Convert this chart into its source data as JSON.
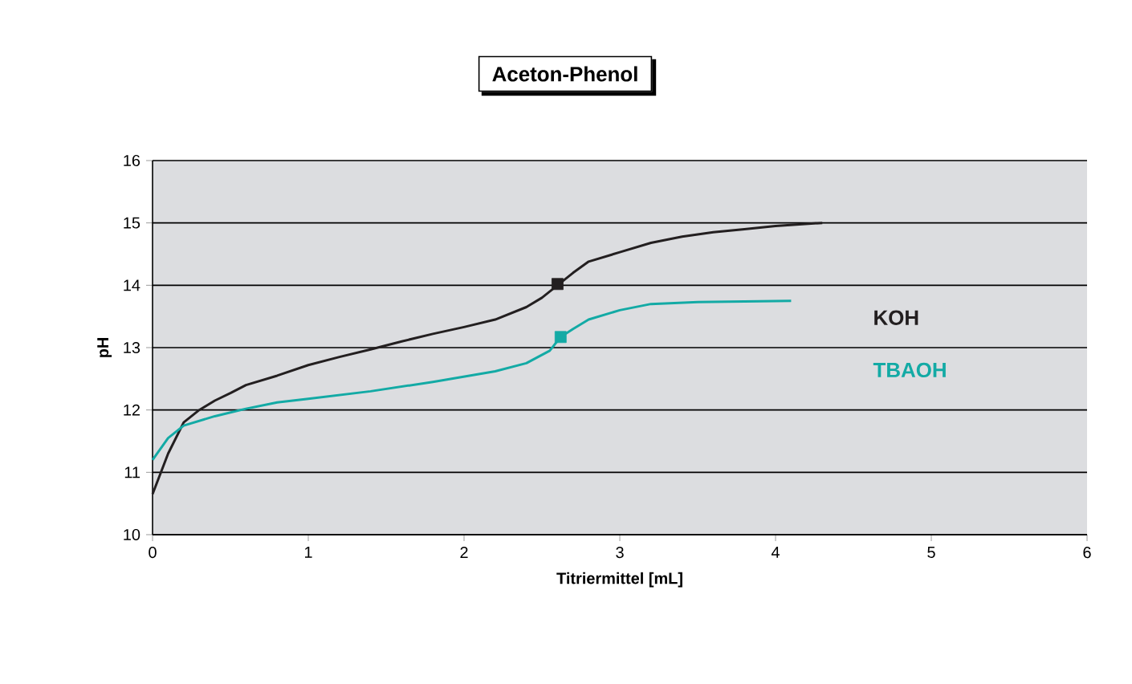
{
  "chart_data": {
    "type": "line",
    "title": "Aceton-Phenol",
    "xlabel": "Titriermittel [mL]",
    "ylabel": "pH",
    "xlim": [
      0,
      6
    ],
    "xticks": [
      0,
      1,
      2,
      3,
      4,
      5,
      6
    ],
    "ylim": [
      10,
      16
    ],
    "yticks": [
      10,
      11,
      12,
      13,
      14,
      15,
      16
    ],
    "grid": "y",
    "legend": "right",
    "marker": "none",
    "line_style": "solid",
    "series": [
      {
        "name": "KOH",
        "color": "#231f20",
        "x": [
          0,
          0.1,
          0.2,
          0.3,
          0.4,
          0.5,
          0.6,
          0.8,
          1.0,
          1.2,
          1.4,
          1.6,
          1.8,
          2.0,
          2.2,
          2.4,
          2.5,
          2.6,
          2.7,
          2.8,
          3.0,
          3.2,
          3.4,
          3.6,
          3.8,
          4.0,
          4.3
        ],
        "values": [
          10.65,
          11.3,
          11.8,
          12.0,
          12.15,
          12.27,
          12.4,
          12.55,
          12.72,
          12.85,
          12.97,
          13.1,
          13.22,
          13.33,
          13.45,
          13.65,
          13.8,
          14.0,
          14.2,
          14.38,
          14.53,
          14.68,
          14.78,
          14.85,
          14.9,
          14.95,
          15.0
        ]
      },
      {
        "name": "TBAOH",
        "color": "#13aaa5",
        "x": [
          0,
          0.1,
          0.2,
          0.4,
          0.6,
          0.8,
          1.0,
          1.4,
          1.8,
          2.2,
          2.4,
          2.55,
          2.62,
          2.7,
          2.8,
          3.0,
          3.2,
          3.5,
          4.1
        ],
        "values": [
          11.2,
          11.55,
          11.75,
          11.9,
          12.02,
          12.12,
          12.18,
          12.3,
          12.45,
          12.62,
          12.75,
          12.95,
          13.17,
          13.3,
          13.45,
          13.6,
          13.7,
          13.73,
          13.75
        ]
      },
      {
        "type": "scatter",
        "marker": "square",
        "color": "#231f20",
        "x": [
          2.6
        ],
        "values": [
          14.02
        ]
      },
      {
        "type": "scatter",
        "marker": "square",
        "color": "#13aaa5",
        "x": [
          2.62
        ],
        "values": [
          13.17
        ]
      }
    ]
  }
}
